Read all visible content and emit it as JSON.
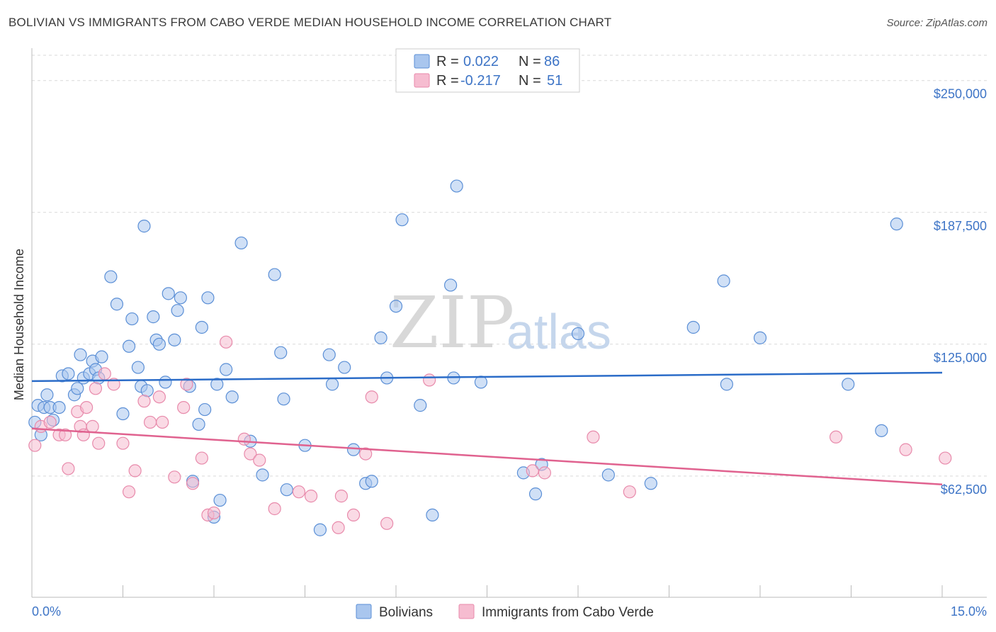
{
  "title": "BOLIVIAN VS IMMIGRANTS FROM CABO VERDE MEDIAN HOUSEHOLD INCOME CORRELATION CHART",
  "source": "Source: ZipAtlas.com",
  "watermark": {
    "zip": "ZIP",
    "atlas": "atlas"
  },
  "colors": {
    "blue_fill": "#a9c6ee",
    "blue_stroke": "#5b8fd6",
    "blue_line": "#2b6cc8",
    "pink_fill": "#f6bcd0",
    "pink_stroke": "#e88aab",
    "pink_line": "#e0628f",
    "grid": "#d9d9d9",
    "tick_text": "#3d74c6"
  },
  "legend": {
    "rows": [
      {
        "r_label": "R = ",
        "r_value": "0.022",
        "n_label": "N = ",
        "n_value": "86"
      },
      {
        "r_label": "R = ",
        "r_value": "-0.217",
        "n_label": "N = ",
        "n_value": "51"
      }
    ]
  },
  "chart_data": {
    "type": "scatter",
    "title": "BOLIVIAN VS IMMIGRANTS FROM CABO VERDE MEDIAN HOUSEHOLD INCOME CORRELATION CHART",
    "xlabel": "",
    "ylabel": "Median Household Income",
    "xlim": [
      0,
      15
    ],
    "ylim": [
      5000,
      262000
    ],
    "x_tick_labels": [
      "0.0%",
      "15.0%"
    ],
    "y_ticks": [
      62500,
      125000,
      187500,
      250000
    ],
    "y_tick_labels": [
      "$62,500",
      "$125,000",
      "$187,500",
      "$250,000"
    ],
    "grid": true,
    "series": [
      {
        "name": "Bolivians",
        "color": "blue",
        "trend": {
          "x": [
            0,
            15
          ],
          "y": [
            107500,
            111500
          ]
        },
        "points": [
          [
            0.05,
            88000
          ],
          [
            0.1,
            96000
          ],
          [
            0.15,
            82000
          ],
          [
            0.2,
            95000
          ],
          [
            0.25,
            101000
          ],
          [
            0.3,
            95000
          ],
          [
            0.35,
            89000
          ],
          [
            0.45,
            95000
          ],
          [
            0.5,
            110000
          ],
          [
            0.6,
            111000
          ],
          [
            0.7,
            101000
          ],
          [
            0.75,
            104000
          ],
          [
            0.8,
            120000
          ],
          [
            0.85,
            109000
          ],
          [
            0.95,
            111000
          ],
          [
            1.0,
            117000
          ],
          [
            1.05,
            113000
          ],
          [
            1.1,
            109000
          ],
          [
            1.15,
            119000
          ],
          [
            1.3,
            157000
          ],
          [
            1.4,
            144000
          ],
          [
            1.5,
            92000
          ],
          [
            1.6,
            124000
          ],
          [
            1.65,
            137000
          ],
          [
            1.75,
            114000
          ],
          [
            1.8,
            105000
          ],
          [
            1.85,
            181000
          ],
          [
            1.9,
            103000
          ],
          [
            2.0,
            138000
          ],
          [
            2.05,
            127000
          ],
          [
            2.1,
            125000
          ],
          [
            2.2,
            107000
          ],
          [
            2.25,
            149000
          ],
          [
            2.35,
            127000
          ],
          [
            2.4,
            141000
          ],
          [
            2.45,
            147000
          ],
          [
            2.6,
            105000
          ],
          [
            2.65,
            60000
          ],
          [
            2.75,
            87000
          ],
          [
            2.8,
            133000
          ],
          [
            2.85,
            94000
          ],
          [
            2.9,
            147000
          ],
          [
            3.0,
            43000
          ],
          [
            3.05,
            106000
          ],
          [
            3.1,
            51000
          ],
          [
            3.2,
            113000
          ],
          [
            3.3,
            100000
          ],
          [
            3.45,
            173000
          ],
          [
            3.6,
            79000
          ],
          [
            3.8,
            63000
          ],
          [
            4.0,
            158000
          ],
          [
            4.1,
            121000
          ],
          [
            4.15,
            99000
          ],
          [
            4.2,
            56000
          ],
          [
            4.5,
            77000
          ],
          [
            4.75,
            37000
          ],
          [
            4.9,
            120000
          ],
          [
            4.95,
            106000
          ],
          [
            5.15,
            114000
          ],
          [
            5.3,
            75000
          ],
          [
            5.5,
            59000
          ],
          [
            5.6,
            60000
          ],
          [
            5.75,
            128000
          ],
          [
            5.85,
            109000
          ],
          [
            6.0,
            143000
          ],
          [
            6.1,
            184000
          ],
          [
            6.4,
            96000
          ],
          [
            6.6,
            44000
          ],
          [
            6.9,
            153000
          ],
          [
            6.95,
            109000
          ],
          [
            7.0,
            200000
          ],
          [
            7.4,
            107000
          ],
          [
            8.1,
            64000
          ],
          [
            8.3,
            54000
          ],
          [
            8.4,
            68000
          ],
          [
            9.0,
            130000
          ],
          [
            9.5,
            63000
          ],
          [
            10.2,
            59000
          ],
          [
            10.9,
            133000
          ],
          [
            11.4,
            155000
          ],
          [
            11.45,
            106000
          ],
          [
            12.0,
            128000
          ],
          [
            13.45,
            106000
          ],
          [
            14.0,
            84000
          ],
          [
            14.25,
            182000
          ]
        ]
      },
      {
        "name": "Immigrants from Cabo Verde",
        "color": "pink",
        "trend": {
          "x": [
            0,
            15
          ],
          "y": [
            85000,
            58500
          ]
        },
        "points": [
          [
            0.05,
            77000
          ],
          [
            0.15,
            86000
          ],
          [
            0.3,
            88000
          ],
          [
            0.45,
            82000
          ],
          [
            0.55,
            82000
          ],
          [
            0.6,
            66000
          ],
          [
            0.75,
            93000
          ],
          [
            0.8,
            86000
          ],
          [
            0.85,
            82000
          ],
          [
            0.9,
            95000
          ],
          [
            1.0,
            86000
          ],
          [
            1.05,
            104000
          ],
          [
            1.1,
            78000
          ],
          [
            1.2,
            111000
          ],
          [
            1.35,
            106000
          ],
          [
            1.5,
            78000
          ],
          [
            1.6,
            55000
          ],
          [
            1.7,
            65000
          ],
          [
            1.85,
            98000
          ],
          [
            1.95,
            88000
          ],
          [
            2.1,
            100000
          ],
          [
            2.15,
            88000
          ],
          [
            2.35,
            62000
          ],
          [
            2.5,
            95000
          ],
          [
            2.55,
            106000
          ],
          [
            2.65,
            59000
          ],
          [
            2.8,
            71000
          ],
          [
            2.9,
            44000
          ],
          [
            3.0,
            45000
          ],
          [
            3.2,
            126000
          ],
          [
            3.5,
            80000
          ],
          [
            3.6,
            73000
          ],
          [
            3.75,
            70000
          ],
          [
            4.0,
            47000
          ],
          [
            4.4,
            55000
          ],
          [
            4.6,
            53000
          ],
          [
            5.05,
            38000
          ],
          [
            5.1,
            53000
          ],
          [
            5.3,
            44000
          ],
          [
            5.5,
            73000
          ],
          [
            5.6,
            100000
          ],
          [
            5.85,
            40000
          ],
          [
            6.55,
            108000
          ],
          [
            8.25,
            65000
          ],
          [
            8.45,
            64000
          ],
          [
            9.25,
            81000
          ],
          [
            9.85,
            55000
          ],
          [
            13.25,
            81000
          ],
          [
            14.4,
            75000
          ],
          [
            15.05,
            71000
          ]
        ]
      }
    ]
  },
  "bottom_legend": [
    {
      "label": "Bolivians",
      "color": "blue"
    },
    {
      "label": "Immigrants from Cabo Verde",
      "color": "pink"
    }
  ]
}
